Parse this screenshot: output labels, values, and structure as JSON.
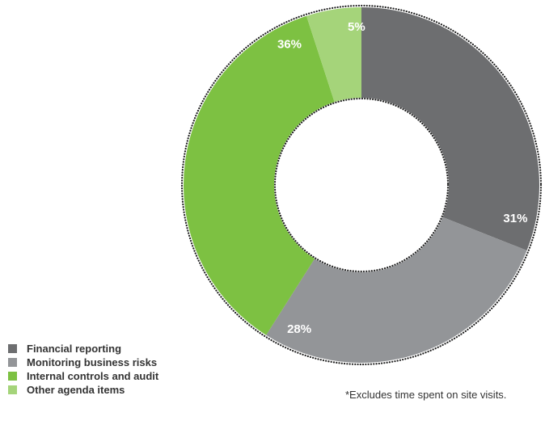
{
  "chart_data": {
    "type": "pie",
    "donut": true,
    "labels": [
      "Financial reporting",
      "Monitoring business risks",
      "Internal controls and audit",
      "Other agenda items"
    ],
    "values": [
      31,
      28,
      36,
      5
    ],
    "value_labels": [
      "31%",
      "28%",
      "36%",
      "5%"
    ],
    "colors": [
      "#6d6e70",
      "#939598",
      "#7dc142",
      "#a5d47a"
    ],
    "start_angle": "12 o'clock",
    "direction": "clockwise",
    "legend_position": "bottom-left",
    "title": ""
  },
  "footnote": "*Excludes time spent on site visits."
}
